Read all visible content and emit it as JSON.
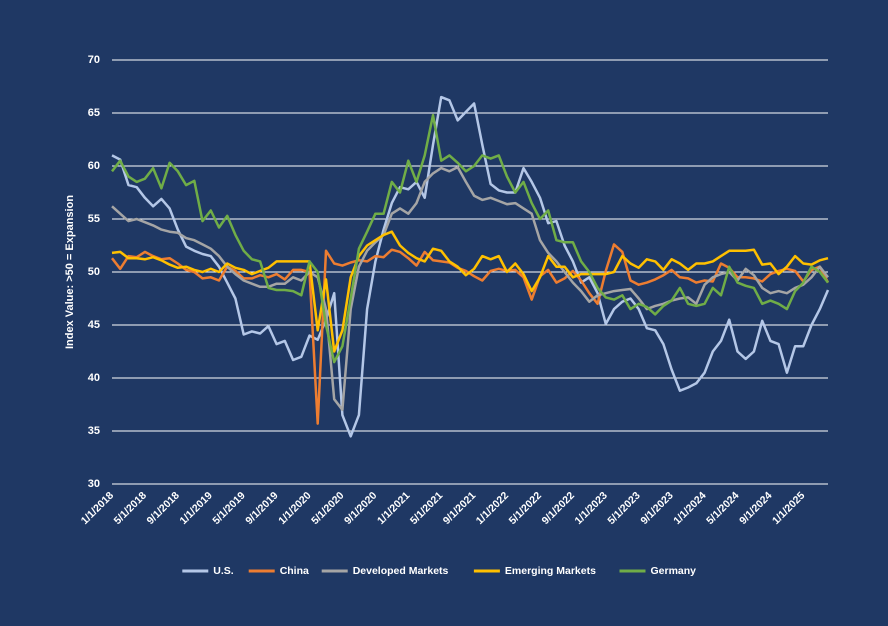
{
  "chart_data": {
    "type": "line",
    "y_label": "Index Value: >50 = Expansion",
    "ylim": [
      30,
      70
    ],
    "yticks": [
      30,
      35,
      40,
      45,
      50,
      55,
      60,
      65,
      70
    ],
    "grid": true,
    "legend": "bottom",
    "categories": [
      "1/1/2018",
      null,
      null,
      null,
      "5/1/2018",
      null,
      null,
      null,
      "9/1/2018",
      null,
      null,
      null,
      "1/1/2019",
      null,
      null,
      null,
      "5/1/2019",
      null,
      null,
      null,
      "9/1/2019",
      null,
      null,
      null,
      "1/1/2020",
      null,
      null,
      null,
      "5/1/2020",
      null,
      null,
      null,
      "9/1/2020",
      null,
      null,
      null,
      "1/1/2021",
      null,
      null,
      null,
      "5/1/2021",
      null,
      null,
      null,
      "9/1/2021",
      null,
      null,
      null,
      "1/1/2022",
      null,
      null,
      null,
      "5/1/2022",
      null,
      null,
      null,
      "9/1/2022",
      null,
      null,
      null,
      "1/1/2023",
      null,
      null,
      null,
      "5/1/2023",
      null,
      null,
      null,
      "9/1/2023",
      null,
      null,
      null,
      "1/1/2024",
      null,
      null,
      null,
      "5/1/2024",
      null,
      null,
      null,
      "9/1/2024",
      null,
      null,
      null,
      "1/1/2025",
      null,
      null,
      null
    ],
    "series": [
      {
        "name": "U.S.",
        "color": "#b4c7e7",
        "values": [
          61.0,
          60.6,
          58.2,
          58.0,
          57.0,
          56.2,
          56.9,
          56.0,
          54.0,
          52.4,
          52.0,
          51.7,
          51.5,
          50.5,
          49.0,
          47.5,
          44.1,
          44.4,
          44.2,
          44.9,
          43.2,
          43.5,
          41.7,
          42.0,
          44.0,
          43.6,
          45.5,
          48.0,
          36.5,
          34.5,
          36.5,
          46.5,
          51.0,
          54.0,
          56.5,
          58.0,
          57.8,
          58.5,
          57.0,
          62.0,
          66.5,
          66.2,
          64.3,
          65.1,
          65.9,
          62.0,
          58.3,
          57.7,
          57.5,
          57.5,
          59.8,
          58.5,
          57.0,
          54.6,
          54.8,
          52.5,
          51.0,
          49.0,
          49.5,
          48.0,
          45.1,
          46.5,
          47.2,
          47.5,
          46.5,
          44.7,
          44.5,
          43.2,
          40.8,
          38.8,
          39.1,
          39.5,
          40.5,
          42.5,
          43.5,
          45.5,
          42.5,
          41.8,
          42.5,
          45.4,
          43.5,
          43.2,
          40.5,
          43.0,
          43.0,
          45.0,
          46.5,
          48.3
        ]
      },
      {
        "name": "China",
        "color": "#ed7d31",
        "values": [
          51.3,
          50.3,
          51.5,
          51.4,
          51.9,
          51.5,
          51.2,
          51.3,
          50.8,
          50.2,
          50.0,
          49.4,
          49.5,
          49.2,
          50.5,
          50.1,
          49.4,
          49.4,
          49.7,
          49.5,
          49.8,
          49.3,
          50.2,
          50.2,
          50.0,
          35.7,
          52.0,
          50.8,
          50.6,
          50.9,
          51.1,
          51.0,
          51.5,
          51.4,
          52.1,
          51.9,
          51.3,
          50.6,
          51.9,
          51.1,
          51.0,
          50.9,
          50.4,
          50.1,
          49.6,
          49.2,
          50.1,
          50.3,
          50.1,
          50.2,
          49.5,
          47.4,
          49.6,
          50.2,
          49.0,
          49.4,
          50.1,
          49.2,
          48.0,
          47.0,
          50.1,
          52.6,
          51.9,
          49.2,
          48.8,
          49.0,
          49.3,
          49.7,
          50.2,
          49.5,
          49.4,
          49.0,
          49.2,
          49.1,
          50.8,
          50.4,
          49.5,
          49.5,
          49.4,
          49.1,
          49.8,
          50.1,
          50.3,
          50.1,
          49.1,
          50.2,
          50.5,
          49.0
        ]
      },
      {
        "name": "Developed Markets",
        "color": "#a5a5a5",
        "values": [
          56.2,
          55.5,
          54.8,
          55.0,
          54.7,
          54.4,
          54.0,
          53.8,
          53.7,
          53.2,
          53.0,
          52.6,
          52.2,
          51.5,
          50.5,
          49.8,
          49.2,
          48.9,
          48.6,
          48.6,
          48.9,
          48.9,
          49.5,
          49.2,
          50.0,
          49.5,
          46.5,
          38.0,
          37.0,
          46.5,
          50.5,
          52.0,
          52.8,
          53.5,
          55.5,
          56.0,
          55.5,
          56.5,
          58.5,
          59.3,
          59.8,
          59.5,
          59.9,
          58.5,
          57.2,
          56.8,
          57.0,
          56.7,
          56.4,
          56.5,
          56.0,
          55.5,
          53.0,
          51.8,
          51.0,
          50.0,
          49.0,
          48.2,
          47.2,
          47.8,
          48.0,
          48.2,
          48.3,
          48.4,
          47.5,
          46.5,
          46.8,
          47.0,
          47.3,
          47.5,
          47.6,
          47.0,
          48.8,
          49.5,
          49.8,
          50.0,
          49.2,
          50.3,
          49.7,
          48.5,
          48.0,
          48.2,
          48.0,
          48.5,
          48.8,
          49.5,
          50.5,
          49.5
        ]
      },
      {
        "name": "Emerging Markets",
        "color": "#ffc000",
        "values": [
          51.8,
          51.9,
          51.3,
          51.3,
          51.2,
          51.4,
          51.1,
          50.7,
          50.4,
          50.5,
          50.2,
          50.0,
          50.3,
          50.0,
          50.8,
          50.4,
          50.2,
          49.8,
          50.1,
          50.4,
          51.0,
          51.0,
          51.0,
          51.0,
          51.0,
          44.5,
          49.3,
          42.5,
          44.5,
          49.5,
          51.5,
          52.5,
          53.0,
          53.5,
          53.8,
          52.5,
          51.8,
          51.3,
          51.0,
          52.2,
          52.0,
          51.0,
          50.5,
          49.7,
          50.3,
          51.5,
          51.2,
          51.5,
          50.0,
          50.8,
          49.8,
          48.2,
          49.5,
          51.5,
          50.5,
          50.5,
          49.5,
          49.8,
          49.8,
          49.8,
          49.8,
          50.0,
          51.5,
          50.8,
          50.4,
          51.2,
          51.0,
          50.2,
          51.2,
          50.8,
          50.2,
          50.8,
          50.8,
          51.0,
          51.5,
          52.0,
          52.0,
          52.0,
          52.1,
          50.7,
          50.8,
          49.8,
          50.5,
          51.5,
          50.8,
          50.7,
          51.1,
          51.3
        ]
      },
      {
        "name": "Germany",
        "color": "#70ad47",
        "values": [
          59.5,
          60.5,
          59.0,
          58.5,
          58.8,
          59.8,
          57.9,
          60.3,
          59.5,
          58.2,
          58.6,
          54.8,
          55.8,
          54.2,
          55.3,
          53.5,
          52.0,
          51.2,
          51.0,
          48.5,
          48.3,
          48.3,
          48.2,
          47.8,
          51.0,
          50.0,
          45.0,
          41.5,
          43.0,
          47.5,
          52.2,
          53.8,
          55.5,
          55.5,
          58.5,
          57.5,
          60.5,
          58.5,
          61.0,
          64.8,
          60.5,
          61.0,
          60.3,
          59.5,
          60.0,
          61.0,
          60.7,
          61.0,
          59.0,
          57.5,
          58.5,
          56.5,
          55.0,
          55.8,
          53.0,
          52.8,
          52.8,
          51.0,
          50.0,
          48.5,
          47.6,
          47.4,
          47.8,
          46.5,
          47.0,
          46.7,
          46.0,
          46.8,
          47.3,
          48.5,
          47.0,
          46.8,
          47.0,
          48.5,
          47.8,
          50.5,
          49.0,
          48.7,
          48.5,
          47.0,
          47.3,
          47.0,
          46.5,
          48.2,
          49.0,
          50.5,
          50.0,
          49.0
        ]
      }
    ]
  }
}
